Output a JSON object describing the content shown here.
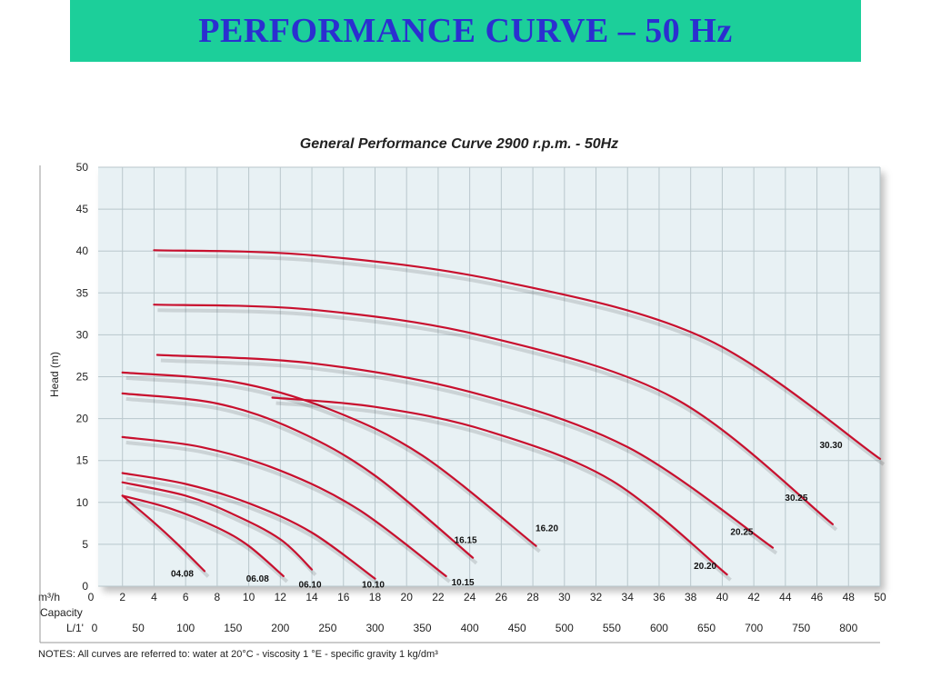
{
  "slide": {
    "title": "PERFORMANCE CURVE – 50 Hz"
  },
  "colors": {
    "banner": "#1ccf9a",
    "title_text": "#2b2fd0",
    "plot_bg": "#e8f1f4",
    "curve": "#c8102e"
  },
  "chart_data": {
    "type": "line",
    "title": "General Performance Curve 2900 r.p.m. - 50Hz",
    "ylabel": "Head (m)",
    "xlabel_rows": {
      "m3h_unit": "m³/h",
      "capacity": "Capacity",
      "lmin_unit": "L/1'"
    },
    "xlim": [
      0,
      50
    ],
    "ylim": [
      0,
      50
    ],
    "x_ticks": [
      0,
      2,
      4,
      6,
      8,
      10,
      12,
      14,
      16,
      18,
      20,
      22,
      24,
      26,
      28,
      30,
      32,
      34,
      36,
      38,
      40,
      42,
      44,
      46,
      48,
      50
    ],
    "y_ticks": [
      0,
      5,
      10,
      15,
      20,
      25,
      30,
      35,
      40,
      45,
      50
    ],
    "lmin_ticks": [
      0,
      50,
      100,
      150,
      200,
      250,
      300,
      350,
      400,
      450,
      500,
      550,
      600,
      650,
      700,
      750,
      800
    ],
    "grid": true,
    "series": [
      {
        "name": "04.08",
        "x": [
          2,
          4,
          5.5,
          7.2
        ],
        "y": [
          10.8,
          7.6,
          5,
          1.8
        ]
      },
      {
        "name": "06.08",
        "x": [
          2,
          5,
          8,
          10,
          12.2
        ],
        "y": [
          10.8,
          9.3,
          7,
          4.8,
          1.2
        ]
      },
      {
        "name": "06.10",
        "x": [
          2,
          6,
          9,
          12,
          14
        ],
        "y": [
          12.4,
          10.8,
          8.6,
          5.6,
          2
        ]
      },
      {
        "name": "10.10",
        "x": [
          2,
          6,
          10,
          14,
          18
        ],
        "y": [
          13.5,
          12.2,
          9.9,
          6.4,
          0.9
        ]
      },
      {
        "name": "10.15",
        "x": [
          2,
          7,
          12,
          17,
          22.5
        ],
        "y": [
          17.8,
          16.6,
          13.8,
          9.1,
          1.2
        ]
      },
      {
        "name": "16.15",
        "x": [
          2,
          8,
          13,
          18,
          24.2
        ],
        "y": [
          23,
          21.8,
          18.6,
          13.2,
          3.4
        ]
      },
      {
        "name": "16.20",
        "x": [
          2,
          9,
          15,
          21,
          28.2
        ],
        "y": [
          25.5,
          24.4,
          21.2,
          15.6,
          4.8
        ]
      },
      {
        "name": "20.20",
        "x": [
          11.5,
          18,
          25,
          33,
          40.3
        ],
        "y": [
          22.5,
          21.4,
          18.6,
          12.6,
          1.4
        ]
      },
      {
        "name": "20.25",
        "x": [
          4.2,
          14,
          24,
          34,
          43.2
        ],
        "y": [
          27.6,
          26.6,
          23.2,
          16.6,
          4.6
        ]
      },
      {
        "name": "30.25",
        "x": [
          4,
          14,
          25,
          37,
          47
        ],
        "y": [
          33.6,
          33,
          29.8,
          22.4,
          7.4
        ]
      },
      {
        "name": "30.30",
        "x": [
          4,
          14,
          26,
          39,
          50
        ],
        "y": [
          40.1,
          39.5,
          36.4,
          29.5,
          15.2
        ]
      }
    ],
    "label_positions": [
      "04.08",
      "06.08",
      "06.10",
      "10.10",
      "10.15",
      "16.15",
      "16.20",
      "20.20",
      "20.25",
      "30.25",
      "30.30"
    ],
    "note": "NOTES: All curves are referred to: water at 20°C - viscosity 1 °E - specific gravity 1 kg/dm³"
  }
}
